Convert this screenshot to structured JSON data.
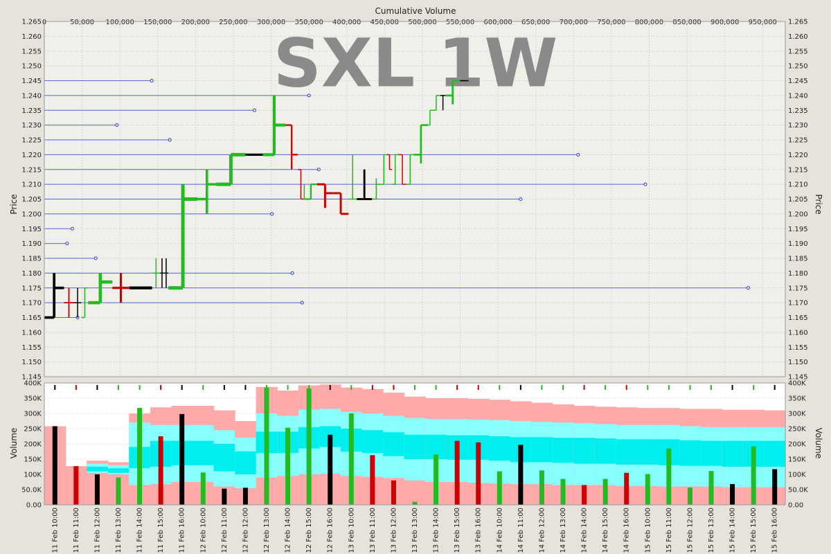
{
  "watermark": "SXL 1W",
  "chart_data": [
    {
      "type": "ohlc",
      "title": "",
      "xlabel": "Cumulative Volume",
      "ylabel": "Price",
      "xlim": [
        0,
        980000
      ],
      "ylim": [
        1.145,
        1.265
      ],
      "x_ticks": [
        "0",
        "50,000",
        "100,000",
        "150,000",
        "200,000",
        "250,000",
        "300,000",
        "350,000",
        "400,000",
        "450,000",
        "500,000",
        "550,000",
        "600,000",
        "650,000",
        "700,000",
        "750,000",
        "800,000",
        "850,000",
        "900,000",
        "950,000"
      ],
      "y_ticks": [
        "1.145",
        "1.150",
        "1.155",
        "1.160",
        "1.165",
        "1.170",
        "1.175",
        "1.180",
        "1.185",
        "1.190",
        "1.195",
        "1.200",
        "1.205",
        "1.210",
        "1.215",
        "1.220",
        "1.225",
        "1.230",
        "1.235",
        "1.240",
        "1.245",
        "1.250",
        "1.255",
        "1.260",
        "1.265"
      ],
      "grid": true,
      "bars": [
        {
          "x0": 0,
          "vol": 26000,
          "o": 1.165,
          "h": 1.18,
          "l": 1.165,
          "c": 1.175,
          "color": "black"
        },
        {
          "x0": 26000,
          "vol": 13000,
          "o": 1.17,
          "h": 1.175,
          "l": 1.165,
          "c": 1.17,
          "color": "red"
        },
        {
          "x0": 39000,
          "vol": 10000,
          "o": 1.17,
          "h": 1.175,
          "l": 1.165,
          "c": 1.17,
          "color": "black"
        },
        {
          "x0": 49000,
          "vol": 9000,
          "o": 1.165,
          "h": 1.175,
          "l": 1.165,
          "c": 1.175,
          "color": "green"
        },
        {
          "x0": 58000,
          "vol": 32000,
          "o": 1.17,
          "h": 1.18,
          "l": 1.17,
          "c": 1.177,
          "color": "green"
        },
        {
          "x0": 90000,
          "vol": 22500,
          "o": 1.175,
          "h": 1.18,
          "l": 1.17,
          "c": 1.175,
          "color": "red"
        },
        {
          "x0": 112500,
          "vol": 30000,
          "o": 1.175,
          "h": 1.175,
          "l": 1.175,
          "c": 1.175,
          "color": "black"
        },
        {
          "x0": 142500,
          "vol": 10500,
          "o": 1.18,
          "h": 1.185,
          "l": 1.175,
          "c": 1.18,
          "color": "green"
        },
        {
          "x0": 153000,
          "vol": 5300,
          "o": 1.18,
          "h": 1.185,
          "l": 1.175,
          "c": 1.18,
          "color": "black"
        },
        {
          "x0": 158300,
          "vol": 5700,
          "o": 1.18,
          "h": 1.185,
          "l": 1.175,
          "c": 1.18,
          "color": "black"
        },
        {
          "x0": 164000,
          "vol": 38500,
          "o": 1.175,
          "h": 1.21,
          "l": 1.175,
          "c": 1.205,
          "color": "green"
        },
        {
          "x0": 202500,
          "vol": 25000,
          "o": 1.205,
          "h": 1.215,
          "l": 1.2,
          "c": 1.21,
          "color": "green"
        },
        {
          "x0": 227500,
          "vol": 38500,
          "o": 1.21,
          "h": 1.22,
          "l": 1.21,
          "c": 1.22,
          "color": "green"
        },
        {
          "x0": 266000,
          "vol": 23000,
          "o": 1.22,
          "h": 1.22,
          "l": 1.22,
          "c": 1.22,
          "color": "black"
        },
        {
          "x0": 289000,
          "vol": 30000,
          "o": 1.22,
          "h": 1.24,
          "l": 1.22,
          "c": 1.23,
          "color": "green"
        },
        {
          "x0": 319000,
          "vol": 16300,
          "o": 1.23,
          "h": 1.23,
          "l": 1.215,
          "c": 1.22,
          "color": "red"
        },
        {
          "x0": 335300,
          "vol": 8000,
          "o": 1.215,
          "h": 1.215,
          "l": 1.205,
          "c": 1.205,
          "color": "red"
        },
        {
          "x0": 343300,
          "vol": 1000,
          "o": 1.207,
          "h": 1.21,
          "l": 1.205,
          "c": 1.207,
          "color": "green"
        },
        {
          "x0": 344300,
          "vol": 16500,
          "o": 1.205,
          "h": 1.21,
          "l": 1.205,
          "c": 1.21,
          "color": "green"
        },
        {
          "x0": 360800,
          "vol": 21000,
          "o": 1.21,
          "h": 1.21,
          "l": 1.202,
          "c": 1.207,
          "color": "red"
        },
        {
          "x0": 381800,
          "vol": 20500,
          "o": 1.207,
          "h": 1.207,
          "l": 1.2,
          "c": 1.2,
          "color": "red"
        },
        {
          "x0": 402300,
          "vol": 11000,
          "o": 1.205,
          "h": 1.22,
          "l": 1.205,
          "c": 1.205,
          "color": "green"
        },
        {
          "x0": 413300,
          "vol": 20000,
          "o": 1.205,
          "h": 1.215,
          "l": 1.205,
          "c": 1.205,
          "color": "black"
        },
        {
          "x0": 433300,
          "vol": 11500,
          "o": 1.205,
          "h": 1.212,
          "l": 1.205,
          "c": 1.21,
          "color": "green"
        },
        {
          "x0": 444800,
          "vol": 8500,
          "o": 1.21,
          "h": 1.22,
          "l": 1.21,
          "c": 1.22,
          "color": "green"
        },
        {
          "x0": 453300,
          "vol": 6500,
          "o": 1.22,
          "h": 1.22,
          "l": 1.215,
          "c": 1.215,
          "color": "red"
        },
        {
          "x0": 459800,
          "vol": 8500,
          "o": 1.21,
          "h": 1.22,
          "l": 1.21,
          "c": 1.22,
          "color": "green"
        },
        {
          "x0": 468300,
          "vol": 10500,
          "o": 1.22,
          "h": 1.22,
          "l": 1.21,
          "c": 1.21,
          "color": "red"
        },
        {
          "x0": 478800,
          "vol": 10000,
          "o": 1.21,
          "h": 1.22,
          "l": 1.21,
          "c": 1.22,
          "color": "green"
        },
        {
          "x0": 488800,
          "vol": 18500,
          "o": 1.22,
          "h": 1.23,
          "l": 1.217,
          "c": 1.23,
          "color": "green"
        },
        {
          "x0": 507300,
          "vol": 5500,
          "o": 1.23,
          "h": 1.235,
          "l": 1.23,
          "c": 1.235,
          "color": "green"
        },
        {
          "x0": 512800,
          "vol": 11000,
          "o": 1.235,
          "h": 1.24,
          "l": 1.235,
          "c": 1.24,
          "color": "green"
        },
        {
          "x0": 523800,
          "vol": 6800,
          "o": 1.24,
          "h": 1.24,
          "l": 1.235,
          "c": 1.24,
          "color": "black"
        },
        {
          "x0": 530600,
          "vol": 19000,
          "o": 1.24,
          "h": 1.245,
          "l": 1.237,
          "c": 1.245,
          "color": "green"
        },
        {
          "x0": 549600,
          "vol": 11500,
          "o": 1.245,
          "h": 1.245,
          "l": 1.245,
          "c": 1.245,
          "color": "black"
        }
      ],
      "levels": [
        {
          "price": 1.245,
          "x_end": 142000
        },
        {
          "price": 1.24,
          "x_end": 350000
        },
        {
          "price": 1.235,
          "x_end": 278000
        },
        {
          "price": 1.23,
          "x_end": 96000
        },
        {
          "price": 1.225,
          "x_end": 166000
        },
        {
          "price": 1.22,
          "x_end": 706000
        },
        {
          "price": 1.215,
          "x_end": 363000
        },
        {
          "price": 1.21,
          "x_end": 795000
        },
        {
          "price": 1.205,
          "x_end": 630000
        },
        {
          "price": 1.2,
          "x_end": 301000
        },
        {
          "price": 1.195,
          "x_end": 37000
        },
        {
          "price": 1.19,
          "x_end": 30000
        },
        {
          "price": 1.185,
          "x_end": 68000
        },
        {
          "price": 1.18,
          "x_end": 328000
        },
        {
          "price": 1.175,
          "x_end": 931000
        },
        {
          "price": 1.17,
          "x_end": 341000
        },
        {
          "price": 1.165,
          "x_end": 44000
        }
      ]
    },
    {
      "type": "bar",
      "title": "",
      "xlabel": "",
      "ylabel": "Volume",
      "ylim": [
        0,
        400000
      ],
      "y_ticks": [
        "0.00",
        "50.0K",
        "100K",
        "150K",
        "200K",
        "250K",
        "300K",
        "350K",
        "400K"
      ],
      "categories": [
        "11 Feb 10:00",
        "11 Feb 11:00",
        "11 Feb 12:00",
        "11 Feb 13:00",
        "11 Feb 14:00",
        "11 Feb 15:00",
        "11 Feb 16:00",
        "12 Feb 10:00",
        "12 Feb 11:00",
        "12 Feb 12:00",
        "12 Feb 13:00",
        "12 Feb 14:00",
        "12 Feb 15:00",
        "12 Feb 16:00",
        "13 Feb 10:00",
        "13 Feb 11:00",
        "13 Feb 12:00",
        "13 Feb 13:00",
        "13 Feb 14:00",
        "13 Feb 15:00",
        "13 Feb 16:00",
        "14 Feb 10:00",
        "14 Feb 11:00",
        "14 Feb 12:00",
        "14 Feb 13:00",
        "14 Feb 14:00",
        "14 Feb 15:00",
        "14 Feb 16:00",
        "15 Feb 10:00",
        "15 Feb 11:00",
        "15 Feb 12:00",
        "15 Feb 13:00",
        "15 Feb 14:00",
        "15 Feb 15:00",
        "15 Feb 16:00"
      ],
      "x_labels": [
        "11 Feb 10:00",
        "11 Feb 11:00",
        "11 Feb 12:00",
        "11 Feb 13:00",
        "11 Feb 14:00",
        "11 Feb 15:00",
        "11 Feb 16:00",
        "12 Feb 10:00",
        "12 Feb 11:00",
        "12 Feb 12:00",
        "12 Feb 13:00",
        "12 Feb 14:00",
        "12 Feb 15:00",
        "12 Feb 16:00",
        "13 Feb 10:00",
        "13 Feb 11:00",
        "13 Feb 12:00",
        "13 Feb 13:00",
        "13 Feb 14:00",
        "13 Feb 15:00",
        "13 Feb 16:00",
        "14 Feb 10:00",
        "14 Feb 11:00",
        "14 Feb 12:00",
        "14 Feb 13:00",
        "14 Feb 14:00",
        "14 Feb 15:00",
        "14 Feb 16:00",
        "15 Feb 10:00",
        "15 Feb 11:00",
        "15 Feb 12:00",
        "15 Feb 13:00",
        "15 Feb 14:00",
        "15 Feb 15:00",
        "15 Feb 16:00"
      ],
      "values": [
        258000,
        127000,
        100000,
        90000,
        318000,
        225000,
        298000,
        106000,
        53000,
        56000,
        385000,
        253000,
        382000,
        230000,
        300000,
        163000,
        80000,
        10000,
        165000,
        210000,
        205000,
        110000,
        197000,
        113000,
        85000,
        65000,
        85000,
        105000,
        101000,
        185000,
        57000,
        111000,
        68000,
        192000,
        117000
      ],
      "bar_colors": [
        "black",
        "red",
        "black",
        "green",
        "green",
        "red",
        "black",
        "green",
        "black",
        "black",
        "green",
        "green",
        "green",
        "black",
        "green",
        "red",
        "red",
        "green",
        "green",
        "red",
        "red",
        "green",
        "black",
        "green",
        "green",
        "red",
        "green",
        "red",
        "green",
        "green",
        "green",
        "green",
        "black",
        "green",
        "black"
      ],
      "bands": {
        "outer": [
          258000,
          127000,
          145000,
          140000,
          300000,
          320000,
          325000,
          325000,
          310000,
          275000,
          387000,
          375000,
          392000,
          395000,
          385000,
          380000,
          368000,
          355000,
          350000,
          350000,
          348000,
          345000,
          340000,
          335000,
          330000,
          325000,
          322000,
          320000,
          318000,
          318000,
          315000,
          315000,
          312000,
          312000,
          310000
        ],
        "mid_upper": [
          258000,
          127000,
          135000,
          130000,
          270000,
          262000,
          262000,
          262000,
          245000,
          220000,
          300000,
          292000,
          312000,
          315000,
          305000,
          300000,
          292000,
          285000,
          282000,
          282000,
          280000,
          278000,
          275000,
          272000,
          270000,
          268000,
          265000,
          262000,
          262000,
          262000,
          258000,
          255000,
          255000,
          255000,
          255000
        ],
        "inner_upper": [
          258000,
          127000,
          125000,
          120000,
          190000,
          210000,
          210000,
          210000,
          200000,
          175000,
          240000,
          240000,
          255000,
          258000,
          250000,
          245000,
          238000,
          230000,
          230000,
          228000,
          228000,
          225000,
          222000,
          222000,
          220000,
          220000,
          218000,
          215000,
          215000,
          215000,
          212000,
          210000,
          210000,
          210000,
          210000
        ],
        "inner_lower": [
          258000,
          127000,
          110000,
          105000,
          120000,
          125000,
          130000,
          130000,
          110000,
          100000,
          170000,
          170000,
          185000,
          190000,
          175000,
          170000,
          160000,
          150000,
          150000,
          148000,
          148000,
          145000,
          140000,
          140000,
          138000,
          135000,
          135000,
          132000,
          132000,
          130000,
          128000,
          128000,
          125000,
          125000,
          125000
        ],
        "mid_lower": [
          258000,
          127000,
          105000,
          100000,
          65000,
          68000,
          75000,
          75000,
          60000,
          55000,
          90000,
          95000,
          100000,
          102000,
          95000,
          92000,
          88000,
          80000,
          75000,
          75000,
          72000,
          70000,
          68000,
          68000,
          65000,
          65000,
          65000,
          62000,
          62000,
          60000,
          60000,
          60000,
          58000,
          58000,
          58000
        ]
      },
      "markers": [
        "",
        "",
        "down",
        "",
        "",
        "",
        "",
        "",
        "",
        "",
        "",
        "",
        "",
        "",
        "",
        "",
        "",
        "",
        "",
        "",
        "",
        "",
        "",
        "",
        "",
        "",
        "",
        "",
        "",
        "",
        "",
        "",
        "",
        "",
        ""
      ]
    }
  ]
}
